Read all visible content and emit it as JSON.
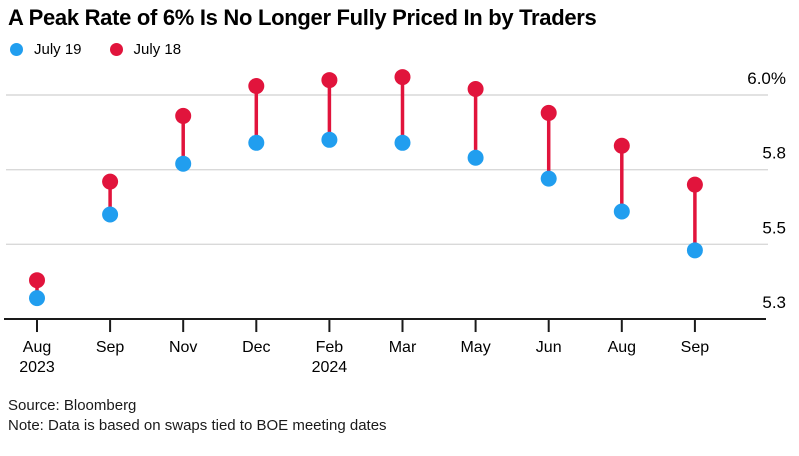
{
  "title": "A Peak Rate of 6% Is No Longer Fully Priced In by Traders",
  "legend": {
    "items": [
      {
        "label": "July 19",
        "color": "#219eef"
      },
      {
        "label": "July 18",
        "color": "#e1143c"
      }
    ]
  },
  "footer": {
    "source": "Source: Bloomberg",
    "note": "Note: Data is based on swaps tied to BOE meeting dates"
  },
  "chart_data": {
    "type": "scatter",
    "subtype": "dumbbell",
    "title": "A Peak Rate of 6% Is No Longer Fully Priced In by Traders",
    "categories": [
      "Aug 2023",
      "Sep 2023",
      "Nov 2023",
      "Dec 2023",
      "Feb 2024",
      "Mar 2024",
      "May 2024",
      "Jun 2024",
      "Aug 2024",
      "Sep 2024"
    ],
    "x_tick_labels": [
      {
        "month": "Aug",
        "year": "2023"
      },
      {
        "month": "Sep",
        "year": ""
      },
      {
        "month": "Nov",
        "year": ""
      },
      {
        "month": "Dec",
        "year": ""
      },
      {
        "month": "Feb",
        "year": "2024"
      },
      {
        "month": "Mar",
        "year": ""
      },
      {
        "month": "May",
        "year": ""
      },
      {
        "month": "Jun",
        "year": ""
      },
      {
        "month": "Aug",
        "year": ""
      },
      {
        "month": "Sep",
        "year": ""
      }
    ],
    "series": [
      {
        "name": "July 19",
        "color": "#219eef",
        "values": [
          5.32,
          5.6,
          5.77,
          5.84,
          5.85,
          5.84,
          5.79,
          5.72,
          5.61,
          5.48
        ]
      },
      {
        "name": "July 18",
        "color": "#e1143c",
        "values": [
          5.38,
          5.71,
          5.93,
          6.03,
          6.05,
          6.06,
          6.02,
          5.94,
          5.83,
          5.7
        ]
      }
    ],
    "y_axis": {
      "unit": "%",
      "ticks": [
        {
          "label": "6.0%",
          "value": 6.0
        },
        {
          "label": "5.8",
          "value": 5.75
        },
        {
          "label": "5.5",
          "value": 5.5
        },
        {
          "label": "5.3",
          "value": 5.25
        }
      ],
      "range": [
        5.25,
        6.1
      ],
      "grid": true,
      "labels_position": "right"
    },
    "legend_position": "top-left",
    "colors": {
      "grid": "#d9d9d9",
      "axis": "#1a1a1a",
      "text": "#000000"
    }
  }
}
